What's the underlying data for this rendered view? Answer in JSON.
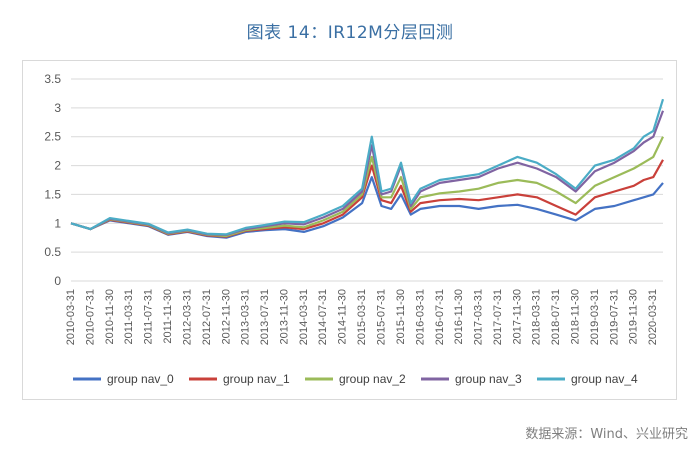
{
  "title": "图表 14：IR12M分层回测",
  "source": "数据来源：Wind、兴业研究",
  "chart_data": {
    "type": "line",
    "ylim": [
      0,
      3.5
    ],
    "yticks": [
      "0",
      "0.5",
      "1",
      "1.5",
      "2",
      "2.5",
      "3",
      "3.5"
    ],
    "xticks": [
      "2010-03-31",
      "2010-07-31",
      "2010-11-30",
      "2011-03-31",
      "2011-07-31",
      "2011-11-30",
      "2012-03-31",
      "2012-07-31",
      "2012-11-30",
      "2013-03-31",
      "2013-07-31",
      "2013-11-30",
      "2014-03-31",
      "2014-07-31",
      "2014-11-30",
      "2015-03-31",
      "2015-07-31",
      "2015-11-30",
      "2016-03-31",
      "2016-07-31",
      "2016-11-30",
      "2017-03-31",
      "2017-07-31",
      "2017-11-30",
      "2018-03-31",
      "2018-07-31",
      "2018-11-30",
      "2019-03-31",
      "2019-07-31",
      "2019-11-30",
      "2020-03-31"
    ],
    "x": [
      "2010-03-31",
      "2010-07-31",
      "2010-11-30",
      "2011-03-31",
      "2011-07-31",
      "2011-11-30",
      "2012-03-31",
      "2012-07-31",
      "2012-11-30",
      "2013-03-31",
      "2013-07-31",
      "2013-11-30",
      "2014-03-31",
      "2014-07-31",
      "2014-11-30",
      "2015-03-31",
      "2015-05-31",
      "2015-07-31",
      "2015-09-30",
      "2015-11-30",
      "2016-01-31",
      "2016-03-31",
      "2016-07-31",
      "2016-11-30",
      "2017-03-31",
      "2017-07-31",
      "2017-11-30",
      "2018-03-31",
      "2018-07-31",
      "2018-11-30",
      "2019-03-31",
      "2019-07-31",
      "2019-11-30",
      "2020-01-31",
      "2020-03-31",
      "2020-05-31"
    ],
    "series": [
      {
        "name": "group nav_0",
        "color": "#4472c4",
        "values": [
          1.0,
          0.9,
          1.05,
          1.0,
          0.95,
          0.8,
          0.85,
          0.78,
          0.75,
          0.85,
          0.88,
          0.9,
          0.85,
          0.95,
          1.1,
          1.35,
          1.8,
          1.3,
          1.25,
          1.5,
          1.15,
          1.25,
          1.3,
          1.3,
          1.25,
          1.3,
          1.32,
          1.25,
          1.15,
          1.05,
          1.25,
          1.3,
          1.4,
          1.45,
          1.5,
          1.7
        ]
      },
      {
        "name": "group nav_1",
        "color": "#c9403a",
        "values": [
          1.0,
          0.9,
          1.06,
          1.01,
          0.96,
          0.81,
          0.86,
          0.79,
          0.77,
          0.87,
          0.9,
          0.93,
          0.9,
          1.0,
          1.15,
          1.45,
          2.0,
          1.4,
          1.35,
          1.65,
          1.2,
          1.35,
          1.4,
          1.42,
          1.4,
          1.45,
          1.5,
          1.45,
          1.3,
          1.15,
          1.45,
          1.55,
          1.65,
          1.75,
          1.8,
          2.1
        ]
      },
      {
        "name": "group nav_2",
        "color": "#9bbb59",
        "values": [
          1.0,
          0.9,
          1.07,
          1.02,
          0.97,
          0.82,
          0.87,
          0.8,
          0.78,
          0.88,
          0.92,
          0.96,
          0.93,
          1.05,
          1.2,
          1.5,
          2.15,
          1.45,
          1.45,
          1.8,
          1.25,
          1.45,
          1.52,
          1.55,
          1.6,
          1.7,
          1.75,
          1.7,
          1.55,
          1.35,
          1.65,
          1.8,
          1.95,
          2.05,
          2.15,
          2.5
        ]
      },
      {
        "name": "group nav_3",
        "color": "#8064a2",
        "values": [
          1.0,
          0.9,
          1.08,
          1.03,
          0.98,
          0.83,
          0.88,
          0.81,
          0.8,
          0.9,
          0.95,
          1.0,
          0.98,
          1.1,
          1.25,
          1.55,
          2.35,
          1.5,
          1.55,
          2.0,
          1.3,
          1.55,
          1.7,
          1.75,
          1.8,
          1.95,
          2.05,
          1.95,
          1.8,
          1.55,
          1.9,
          2.05,
          2.25,
          2.4,
          2.5,
          2.95
        ]
      },
      {
        "name": "group nav_4",
        "color": "#4bacc6",
        "values": [
          1.0,
          0.9,
          1.09,
          1.04,
          0.99,
          0.84,
          0.89,
          0.82,
          0.81,
          0.92,
          0.97,
          1.03,
          1.02,
          1.15,
          1.3,
          1.6,
          2.5,
          1.55,
          1.6,
          2.05,
          1.35,
          1.6,
          1.75,
          1.8,
          1.85,
          2.0,
          2.15,
          2.05,
          1.85,
          1.6,
          2.0,
          2.1,
          2.3,
          2.5,
          2.6,
          3.15
        ]
      }
    ],
    "grid": true,
    "legend": "bottom"
  }
}
